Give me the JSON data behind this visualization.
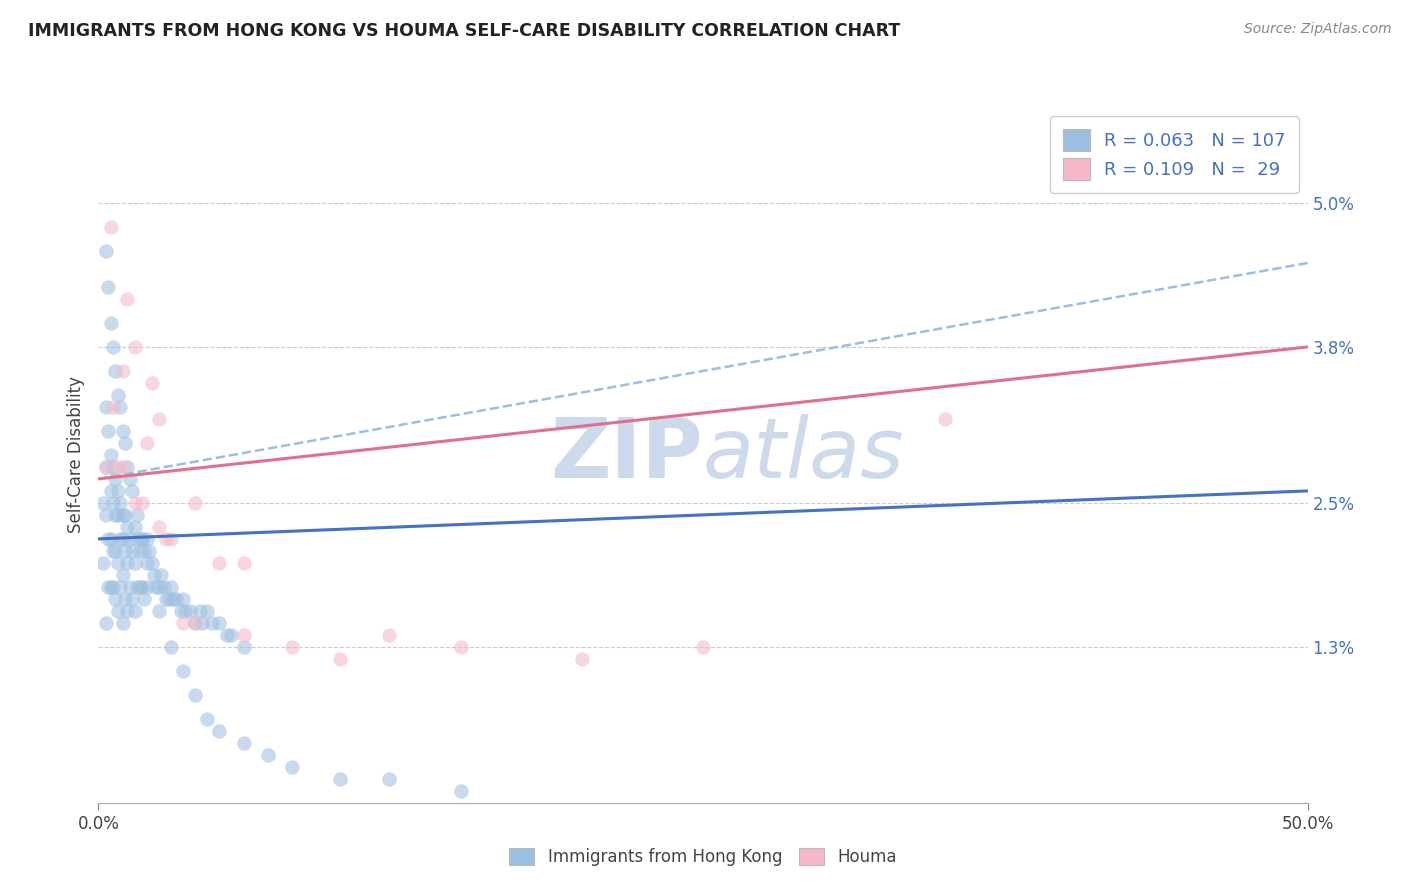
{
  "title": "IMMIGRANTS FROM HONG KONG VS HOUMA SELF-CARE DISABILITY CORRELATION CHART",
  "source": "Source: ZipAtlas.com",
  "ylabel": "Self-Care Disability",
  "y_tick_labels": [
    "1.3%",
    "2.5%",
    "3.8%",
    "5.0%"
  ],
  "xlim": [
    0.0,
    0.5
  ],
  "ylim": [
    0.0,
    0.058
  ],
  "y_ticks": [
    0.013,
    0.025,
    0.038,
    0.05
  ],
  "legend_labels": [
    "Immigrants from Hong Kong",
    "Houma"
  ],
  "legend_R1": "0.063",
  "legend_N1": "107",
  "legend_R2": "0.109",
  "legend_N2": " 29",
  "blue_color": "#9bbfe0",
  "pink_color": "#f4b8c8",
  "blue_line_color": "#4472c4",
  "pink_line_color": "#e07090",
  "dashed_line_color": "#9bbfe0",
  "title_color": "#222222",
  "source_color": "#888888",
  "watermark_color": "#cddaeb",
  "grid_color": "#cccccc",
  "background_color": "#ffffff",
  "scatter_alpha": 0.55,
  "marker_size": 110,
  "blue_scatter_x": [
    0.002,
    0.002,
    0.003,
    0.003,
    0.003,
    0.003,
    0.004,
    0.004,
    0.004,
    0.005,
    0.005,
    0.005,
    0.005,
    0.006,
    0.006,
    0.006,
    0.006,
    0.007,
    0.007,
    0.007,
    0.007,
    0.008,
    0.008,
    0.008,
    0.008,
    0.009,
    0.009,
    0.009,
    0.01,
    0.01,
    0.01,
    0.01,
    0.011,
    0.011,
    0.011,
    0.012,
    0.012,
    0.012,
    0.013,
    0.013,
    0.014,
    0.014,
    0.015,
    0.015,
    0.015,
    0.016,
    0.016,
    0.017,
    0.017,
    0.018,
    0.018,
    0.019,
    0.019,
    0.02,
    0.02,
    0.021,
    0.022,
    0.023,
    0.024,
    0.025,
    0.026,
    0.027,
    0.028,
    0.029,
    0.03,
    0.031,
    0.032,
    0.034,
    0.035,
    0.036,
    0.038,
    0.04,
    0.042,
    0.043,
    0.045,
    0.047,
    0.05,
    0.053,
    0.055,
    0.06,
    0.003,
    0.004,
    0.005,
    0.006,
    0.007,
    0.008,
    0.009,
    0.01,
    0.011,
    0.012,
    0.013,
    0.014,
    0.016,
    0.018,
    0.02,
    0.025,
    0.03,
    0.035,
    0.04,
    0.045,
    0.05,
    0.06,
    0.07,
    0.08,
    0.1,
    0.12,
    0.15
  ],
  "blue_scatter_y": [
    0.025,
    0.02,
    0.028,
    0.024,
    0.033,
    0.015,
    0.031,
    0.018,
    0.022,
    0.029,
    0.026,
    0.022,
    0.018,
    0.028,
    0.025,
    0.021,
    0.018,
    0.027,
    0.024,
    0.021,
    0.017,
    0.026,
    0.024,
    0.02,
    0.016,
    0.025,
    0.022,
    0.018,
    0.024,
    0.022,
    0.019,
    0.015,
    0.024,
    0.021,
    0.017,
    0.023,
    0.02,
    0.016,
    0.022,
    0.018,
    0.021,
    0.017,
    0.023,
    0.02,
    0.016,
    0.022,
    0.018,
    0.021,
    0.018,
    0.022,
    0.018,
    0.021,
    0.017,
    0.022,
    0.018,
    0.021,
    0.02,
    0.019,
    0.018,
    0.018,
    0.019,
    0.018,
    0.017,
    0.017,
    0.018,
    0.017,
    0.017,
    0.016,
    0.017,
    0.016,
    0.016,
    0.015,
    0.016,
    0.015,
    0.016,
    0.015,
    0.015,
    0.014,
    0.014,
    0.013,
    0.046,
    0.043,
    0.04,
    0.038,
    0.036,
    0.034,
    0.033,
    0.031,
    0.03,
    0.028,
    0.027,
    0.026,
    0.024,
    0.022,
    0.02,
    0.016,
    0.013,
    0.011,
    0.009,
    0.007,
    0.006,
    0.005,
    0.004,
    0.003,
    0.002,
    0.002,
    0.001
  ],
  "pink_scatter_x": [
    0.003,
    0.005,
    0.006,
    0.008,
    0.01,
    0.01,
    0.012,
    0.015,
    0.015,
    0.018,
    0.02,
    0.022,
    0.025,
    0.025,
    0.028,
    0.03,
    0.035,
    0.04,
    0.05,
    0.06,
    0.08,
    0.1,
    0.12,
    0.15,
    0.2,
    0.25,
    0.35,
    0.04,
    0.06
  ],
  "pink_scatter_y": [
    0.028,
    0.048,
    0.033,
    0.028,
    0.036,
    0.028,
    0.042,
    0.025,
    0.038,
    0.025,
    0.03,
    0.035,
    0.023,
    0.032,
    0.022,
    0.022,
    0.015,
    0.015,
    0.02,
    0.014,
    0.013,
    0.012,
    0.014,
    0.013,
    0.012,
    0.013,
    0.032,
    0.025,
    0.02
  ],
  "blue_trend_x": [
    0.0,
    0.5
  ],
  "blue_trend_y": [
    0.022,
    0.026
  ],
  "pink_trend_x": [
    0.0,
    0.5
  ],
  "pink_trend_y": [
    0.027,
    0.038
  ],
  "dashed_trend_x": [
    0.0,
    0.5
  ],
  "dashed_trend_y": [
    0.027,
    0.045
  ]
}
